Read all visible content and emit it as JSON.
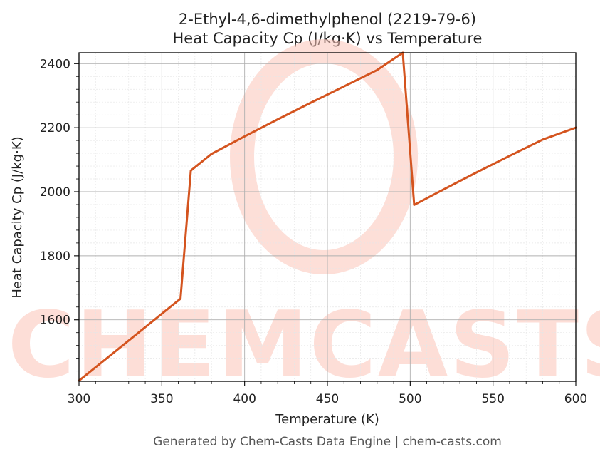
{
  "chart_data": {
    "type": "line",
    "title_line1": "2-Ethyl-4,6-dimethylphenol (2219-79-6)",
    "title_line2": "Heat Capacity Cp (J/kg·K) vs Temperature",
    "xlabel": "Temperature (K)",
    "ylabel": "Heat Capacity Cp (J/kg·K)",
    "xlim": [
      300,
      600
    ],
    "ylim": [
      1408,
      2434
    ],
    "xticks": [
      300,
      350,
      400,
      450,
      500,
      550,
      600
    ],
    "yticks": [
      1600,
      1800,
      2000,
      2200,
      2400
    ],
    "grid": true,
    "line_color": "#d4541f",
    "series": [
      {
        "x": [
          300,
          361.3,
          367.5,
          380,
          400,
          420,
          440,
          460,
          480,
          495.5,
          502.4,
          520,
          540,
          560,
          580,
          600
        ],
        "values": [
          1410,
          1666,
          2066,
          2118,
          2173,
          2226,
          2278,
          2329,
          2380,
          2434,
          1959,
          2007,
          2060,
          2112,
          2163,
          2200
        ]
      }
    ]
  },
  "watermark": {
    "text": "CHEMCASTS",
    "color": "#fdd8d0"
  },
  "footer": "Generated by Chem-Casts Data Engine | chem-casts.com"
}
